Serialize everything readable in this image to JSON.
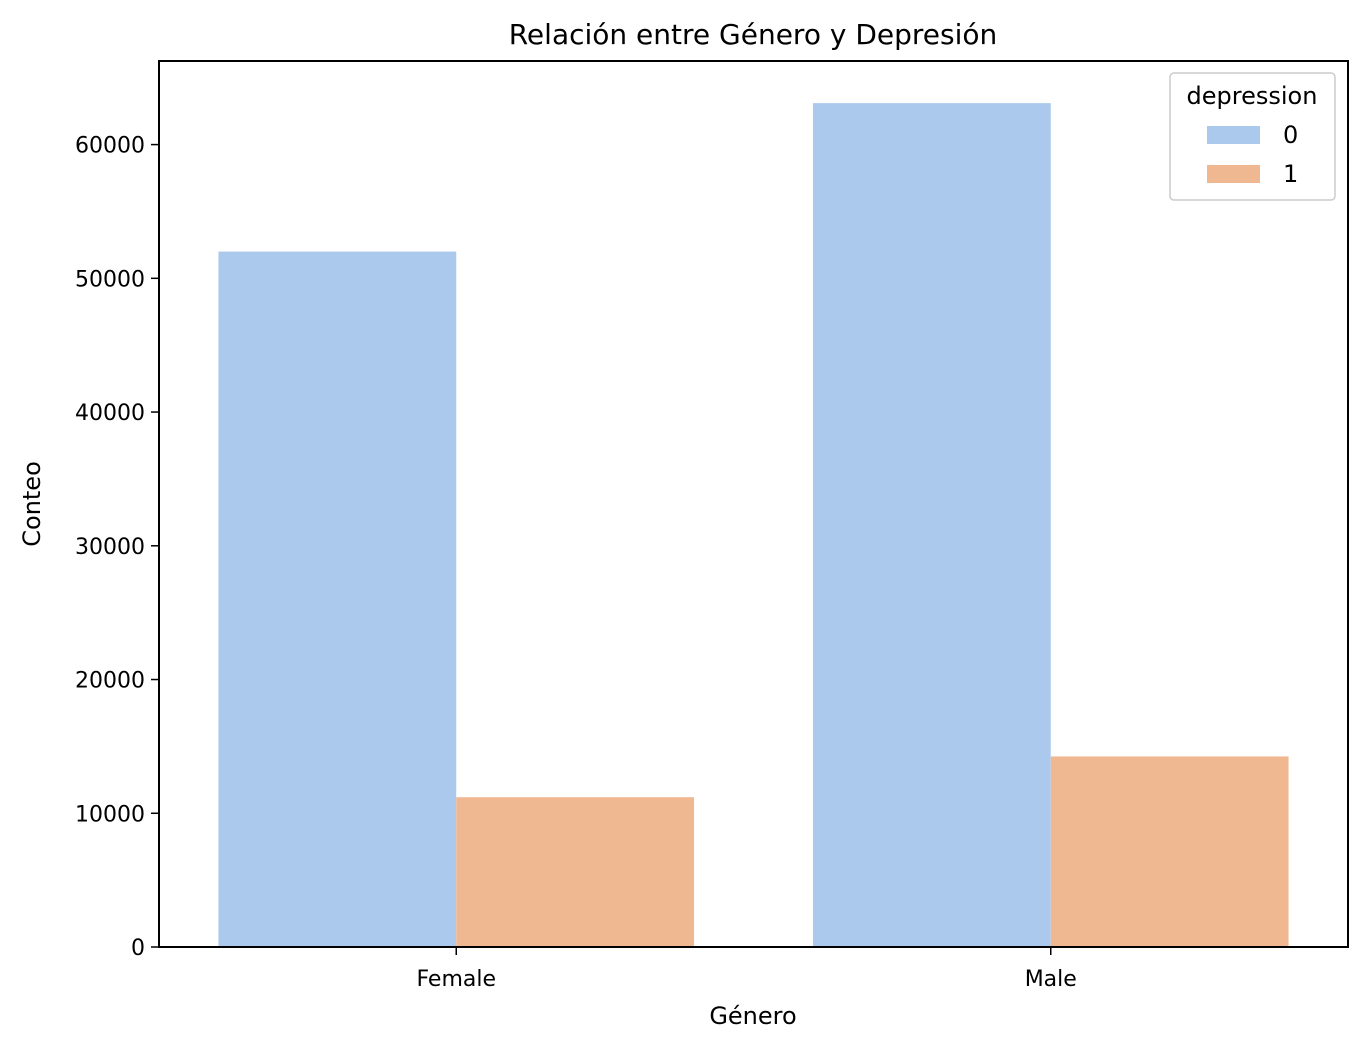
{
  "chart_data": {
    "type": "bar",
    "title": "Relación entre Género y Depresión",
    "xlabel": "Género",
    "ylabel": "Conteo",
    "categories": [
      "Female",
      "Male"
    ],
    "series": [
      {
        "name": "0",
        "values": [
          52000,
          63100
        ],
        "color": "#abc9ed"
      },
      {
        "name": "1",
        "values": [
          11200,
          14250
        ],
        "color": "#f0b891"
      }
    ],
    "ylim": [
      0,
      66250
    ],
    "yticks": [
      0,
      10000,
      20000,
      30000,
      40000,
      50000,
      60000
    ],
    "legend": {
      "title": "depression",
      "placement": "top-right"
    },
    "grid": false
  }
}
